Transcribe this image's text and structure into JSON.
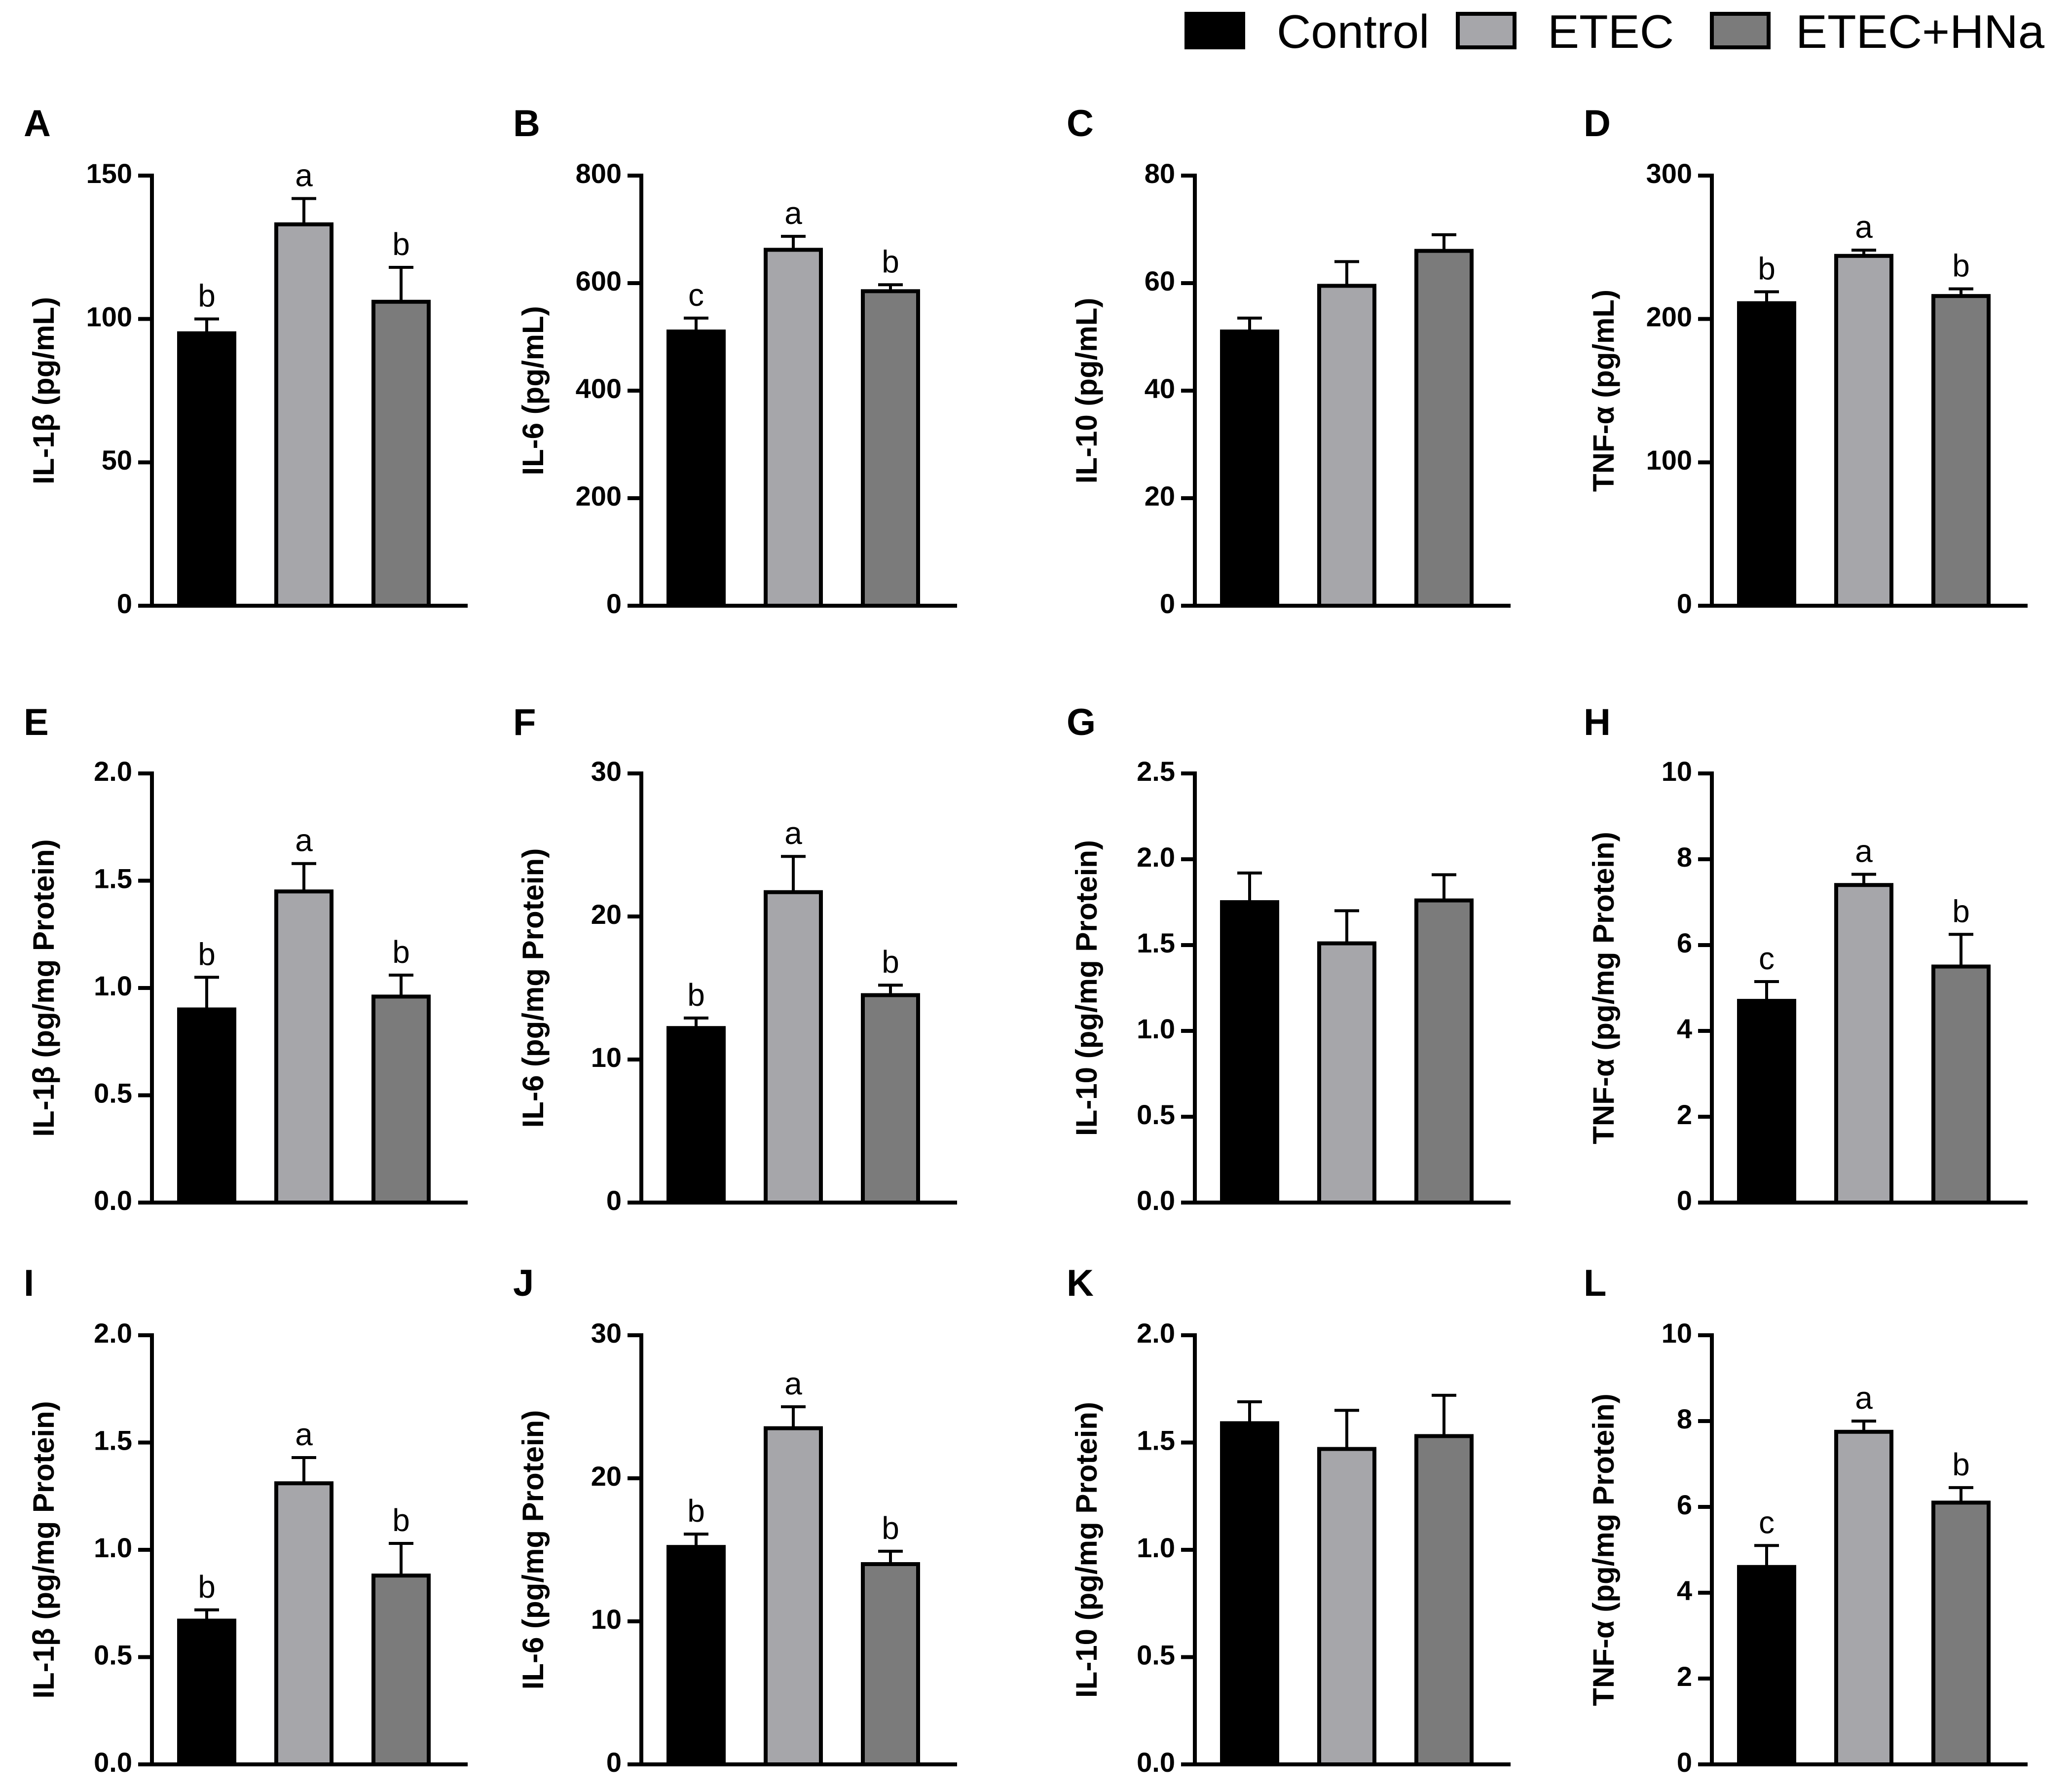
{
  "legend": [
    {
      "label": "Control",
      "color": "#000000"
    },
    {
      "label": "ETEC",
      "color": "#a6a6aa"
    },
    {
      "label": "ETEC+HNa",
      "color": "#7b7b7b"
    }
  ],
  "chart_data": [
    {
      "panel": "A",
      "type": "bar",
      "categories": [
        "Control",
        "ETEC",
        "ETEC+HNa"
      ],
      "values": [
        95,
        133,
        106
      ],
      "errors": [
        5,
        9,
        12
      ],
      "sig": [
        "b",
        "a",
        "b"
      ],
      "ylabel": "IL-1β (pg/mL)",
      "ylim": [
        0,
        150
      ],
      "ticks": [
        "0",
        "50",
        "100",
        "150"
      ]
    },
    {
      "panel": "B",
      "type": "bar",
      "categories": [
        "Control",
        "ETEC",
        "ETEC+HNa"
      ],
      "values": [
        510,
        662,
        585
      ],
      "errors": [
        25,
        25,
        12
      ],
      "sig": [
        "c",
        "a",
        "b"
      ],
      "ylabel": "IL-6 (pg/mL)",
      "ylim": [
        0,
        800
      ],
      "ticks": [
        "0",
        "200",
        "400",
        "600",
        "800"
      ]
    },
    {
      "panel": "C",
      "type": "bar",
      "categories": [
        "Control",
        "ETEC",
        "ETEC+HNa"
      ],
      "values": [
        51,
        59.5,
        66
      ],
      "errors": [
        2.5,
        4.5,
        3
      ],
      "sig": [
        "",
        "",
        ""
      ],
      "ylabel": "IL-10 (pg/mL)",
      "ylim": [
        0,
        80
      ],
      "ticks": [
        "0",
        "20",
        "40",
        "60",
        "80"
      ]
    },
    {
      "panel": "D",
      "type": "bar",
      "categories": [
        "Control",
        "ETEC",
        "ETEC+HNa"
      ],
      "values": [
        211,
        244,
        216
      ],
      "errors": [
        8,
        4,
        5
      ],
      "sig": [
        "b",
        "a",
        "b"
      ],
      "ylabel": "TNF-α (pg/mL)",
      "ylim": [
        0,
        300
      ],
      "ticks": [
        "0",
        "100",
        "200",
        "300"
      ]
    },
    {
      "panel": "E",
      "type": "bar",
      "categories": [
        "Control",
        "ETEC",
        "ETEC+HNa"
      ],
      "values": [
        0.9,
        1.45,
        0.96
      ],
      "errors": [
        0.15,
        0.13,
        0.1
      ],
      "sig": [
        "b",
        "a",
        "b"
      ],
      "ylabel": "IL-1β (pg/mg Protein)",
      "ylim": [
        0,
        2
      ],
      "ticks": [
        "0.0",
        "0.5",
        "1.0",
        "1.5",
        "2.0"
      ]
    },
    {
      "panel": "F",
      "type": "bar",
      "categories": [
        "Control",
        "ETEC",
        "ETEC+HNa"
      ],
      "values": [
        12.2,
        21.7,
        14.5
      ],
      "errors": [
        0.7,
        2.5,
        0.7
      ],
      "sig": [
        "b",
        "a",
        "b"
      ],
      "ylabel": "IL-6 (pg/mg Protein)",
      "ylim": [
        0,
        30
      ],
      "ticks": [
        "0",
        "10",
        "20",
        "30"
      ]
    },
    {
      "panel": "G",
      "type": "bar",
      "categories": [
        "Control",
        "ETEC",
        "ETEC+HNa"
      ],
      "values": [
        1.75,
        1.51,
        1.76
      ],
      "errors": [
        0.17,
        0.19,
        0.15
      ],
      "sig": [
        "",
        "",
        ""
      ],
      "ylabel": "IL-10 (pg/mg Protein)",
      "ylim": [
        0,
        2.5
      ],
      "ticks": [
        "0.0",
        "0.5",
        "1.0",
        "1.5",
        "2.0",
        "2.5"
      ]
    },
    {
      "panel": "H",
      "type": "bar",
      "categories": [
        "Control",
        "ETEC",
        "ETEC+HNa"
      ],
      "values": [
        4.7,
        7.4,
        5.5
      ],
      "errors": [
        0.45,
        0.25,
        0.75
      ],
      "sig": [
        "c",
        "a",
        "b"
      ],
      "ylabel": "TNF-α (pg/mg Protein)",
      "ylim": [
        0,
        10
      ],
      "ticks": [
        "0",
        "2",
        "4",
        "6",
        "8",
        "10"
      ]
    },
    {
      "panel": "I",
      "type": "bar",
      "categories": [
        "Control",
        "ETEC",
        "ETEC+HNa"
      ],
      "values": [
        0.67,
        1.31,
        0.88
      ],
      "errors": [
        0.05,
        0.12,
        0.15
      ],
      "sig": [
        "b",
        "a",
        "b"
      ],
      "ylabel": "IL-1β (pg/mg Protein)",
      "ylim": [
        0,
        2
      ],
      "ticks": [
        "0.0",
        "0.5",
        "1.0",
        "1.5",
        "2.0"
      ]
    },
    {
      "panel": "J",
      "type": "bar",
      "categories": [
        "Control",
        "ETEC",
        "ETEC+HNa"
      ],
      "values": [
        15.2,
        23.5,
        14.0
      ],
      "errors": [
        0.9,
        1.5,
        0.9
      ],
      "sig": [
        "b",
        "a",
        "b"
      ],
      "ylabel": "IL-6 (pg/mg Protein)",
      "ylim": [
        0,
        30
      ],
      "ticks": [
        "0",
        "10",
        "20",
        "30"
      ]
    },
    {
      "panel": "K",
      "type": "bar",
      "categories": [
        "Control",
        "ETEC",
        "ETEC+HNa"
      ],
      "values": [
        1.59,
        1.47,
        1.53
      ],
      "errors": [
        0.1,
        0.18,
        0.19
      ],
      "sig": [
        "",
        "",
        ""
      ],
      "ylabel": "IL-10 (pg/mg Protein)",
      "ylim": [
        0,
        2
      ],
      "ticks": [
        "0.0",
        "0.5",
        "1.0",
        "1.5",
        "2.0"
      ]
    },
    {
      "panel": "L",
      "type": "bar",
      "categories": [
        "Control",
        "ETEC",
        "ETEC+HNa"
      ],
      "values": [
        4.6,
        7.75,
        6.1
      ],
      "errors": [
        0.5,
        0.25,
        0.35
      ],
      "sig": [
        "c",
        "a",
        "b"
      ],
      "ylabel": "TNF-α (pg/mg Protein)",
      "ylim": [
        0,
        10
      ],
      "ticks": [
        "0",
        "2",
        "4",
        "6",
        "8",
        "10"
      ]
    }
  ]
}
